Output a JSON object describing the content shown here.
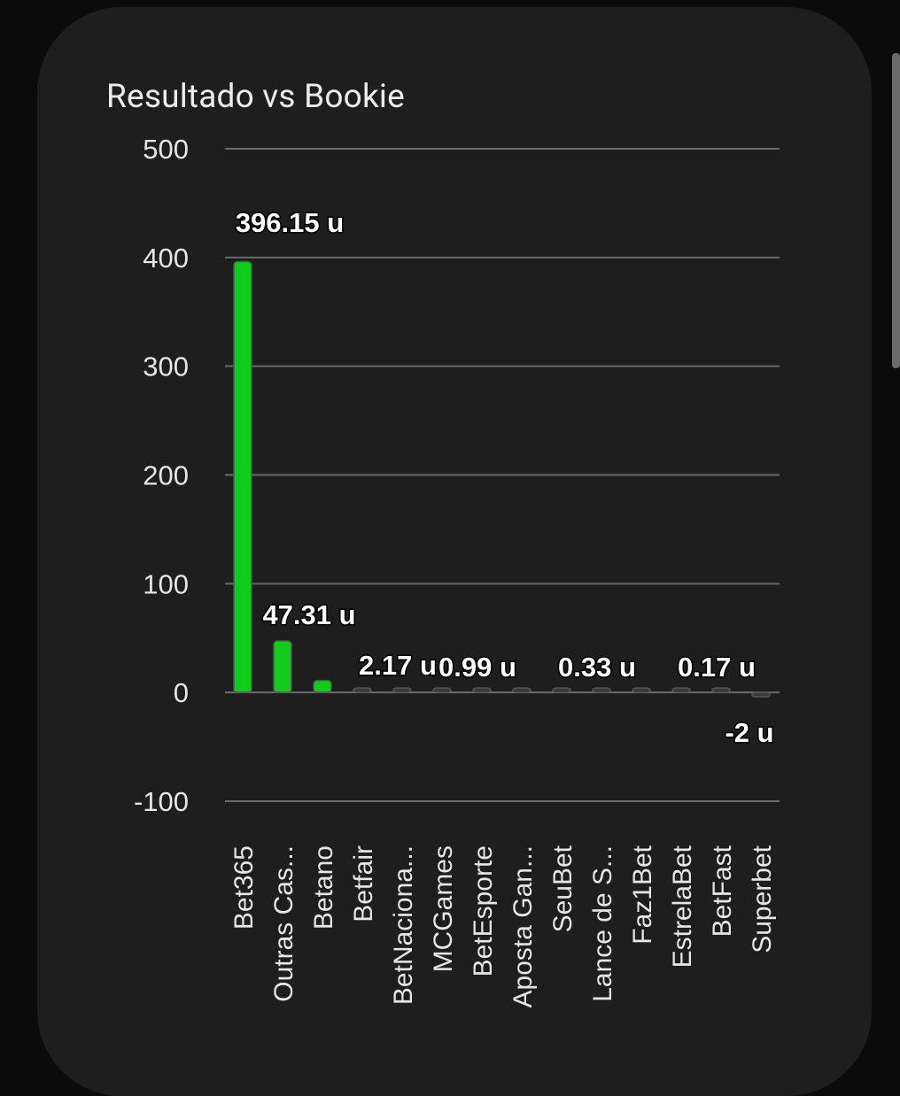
{
  "card": {
    "title": "Resultado vs Bookie"
  },
  "chart_data": {
    "type": "bar",
    "title": "Resultado vs Bookie",
    "xlabel": "",
    "ylabel": "",
    "ylim": [
      -100,
      500
    ],
    "yticks": [
      500,
      400,
      300,
      200,
      100,
      0,
      -100
    ],
    "grid": true,
    "categories": [
      "Bet365",
      "Outras Cas...",
      "Betano",
      "Betfair",
      "BetNaciona...",
      "MCGames",
      "BetEsporte",
      "Aposta Gan...",
      "SeuBet",
      "Lance de S...",
      "Faz1Bet",
      "EstrelaBet",
      "BetFast",
      "Superbet"
    ],
    "values": [
      396.15,
      47.31,
      11,
      2.17,
      1,
      0.99,
      0.5,
      0.4,
      0.33,
      0.25,
      0.2,
      0.17,
      0.1,
      -2
    ],
    "data_labels": [
      {
        "index": 0,
        "text": "396.15 u"
      },
      {
        "index": 1,
        "text": "47.31 u"
      },
      {
        "index": 3,
        "text": "2.17 u"
      },
      {
        "index": 5,
        "text": "0.99 u"
      },
      {
        "index": 8,
        "text": "0.33 u"
      },
      {
        "index": 11,
        "text": "0.17 u"
      },
      {
        "index": 13,
        "text": "-2 u"
      }
    ],
    "colors": {
      "positive": "#11cc1b",
      "neutral": "#3a3a3a",
      "bar_outline": "#555555",
      "grid": "#6a6a6a",
      "text": "#e6e6e6",
      "label": "#ffffff"
    }
  }
}
